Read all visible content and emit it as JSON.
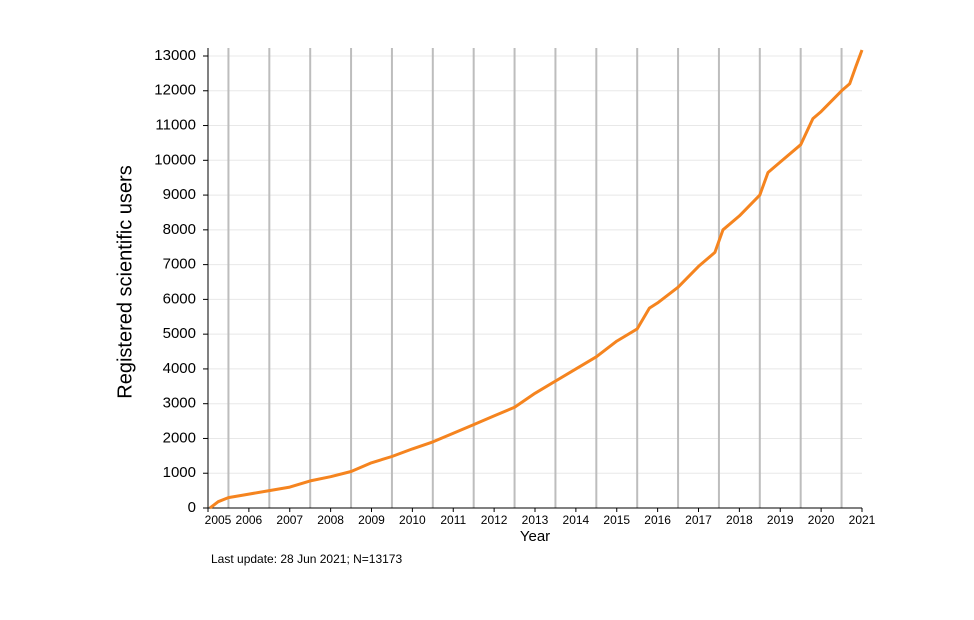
{
  "chart_data": {
    "type": "line",
    "ylabel": "Registered scientific users",
    "xlabel": "Year",
    "note": "Last update: 28 Jun 2021; N=13173",
    "color": "#f5841f",
    "x": [
      2005.05,
      2005.25,
      2005.5,
      2006.0,
      2006.5,
      2007.0,
      2007.5,
      2008.0,
      2008.5,
      2009.0,
      2009.5,
      2010.0,
      2010.5,
      2011.0,
      2011.5,
      2012.0,
      2012.5,
      2013.0,
      2013.5,
      2014.0,
      2014.5,
      2015.0,
      2015.5,
      2015.8,
      2016.0,
      2016.5,
      2017.0,
      2017.4,
      2017.6,
      2018.0,
      2018.5,
      2018.7,
      2019.0,
      2019.5,
      2019.8,
      2020.0,
      2020.5,
      2020.7,
      2020.85,
      2021.0
    ],
    "values": [
      0,
      180,
      300,
      400,
      500,
      600,
      780,
      900,
      1050,
      1300,
      1480,
      1700,
      1900,
      2150,
      2400,
      2650,
      2900,
      3300,
      3650,
      4000,
      4350,
      4800,
      5150,
      5750,
      5900,
      6350,
      6950,
      7350,
      8000,
      8400,
      9000,
      9650,
      9950,
      10450,
      11200,
      11400,
      12000,
      12200,
      12700,
      13173
    ],
    "xlim": [
      2005,
      2021
    ],
    "xticks": [
      2005,
      2006,
      2007,
      2008,
      2009,
      2010,
      2011,
      2012,
      2013,
      2014,
      2015,
      2016,
      2017,
      2018,
      2019,
      2020,
      2021
    ],
    "x_gridlines": [
      2005.5,
      2006.5,
      2007.5,
      2008.5,
      2009.5,
      2010.5,
      2011.5,
      2012.5,
      2013.5,
      2014.5,
      2015.5,
      2016.5,
      2017.5,
      2018.5,
      2019.5,
      2020.5
    ],
    "ylim": [
      0,
      13000
    ],
    "yticks": [
      0,
      1000,
      2000,
      3000,
      4000,
      5000,
      6000,
      7000,
      8000,
      9000,
      10000,
      11000,
      12000,
      13000
    ],
    "grid": true
  }
}
